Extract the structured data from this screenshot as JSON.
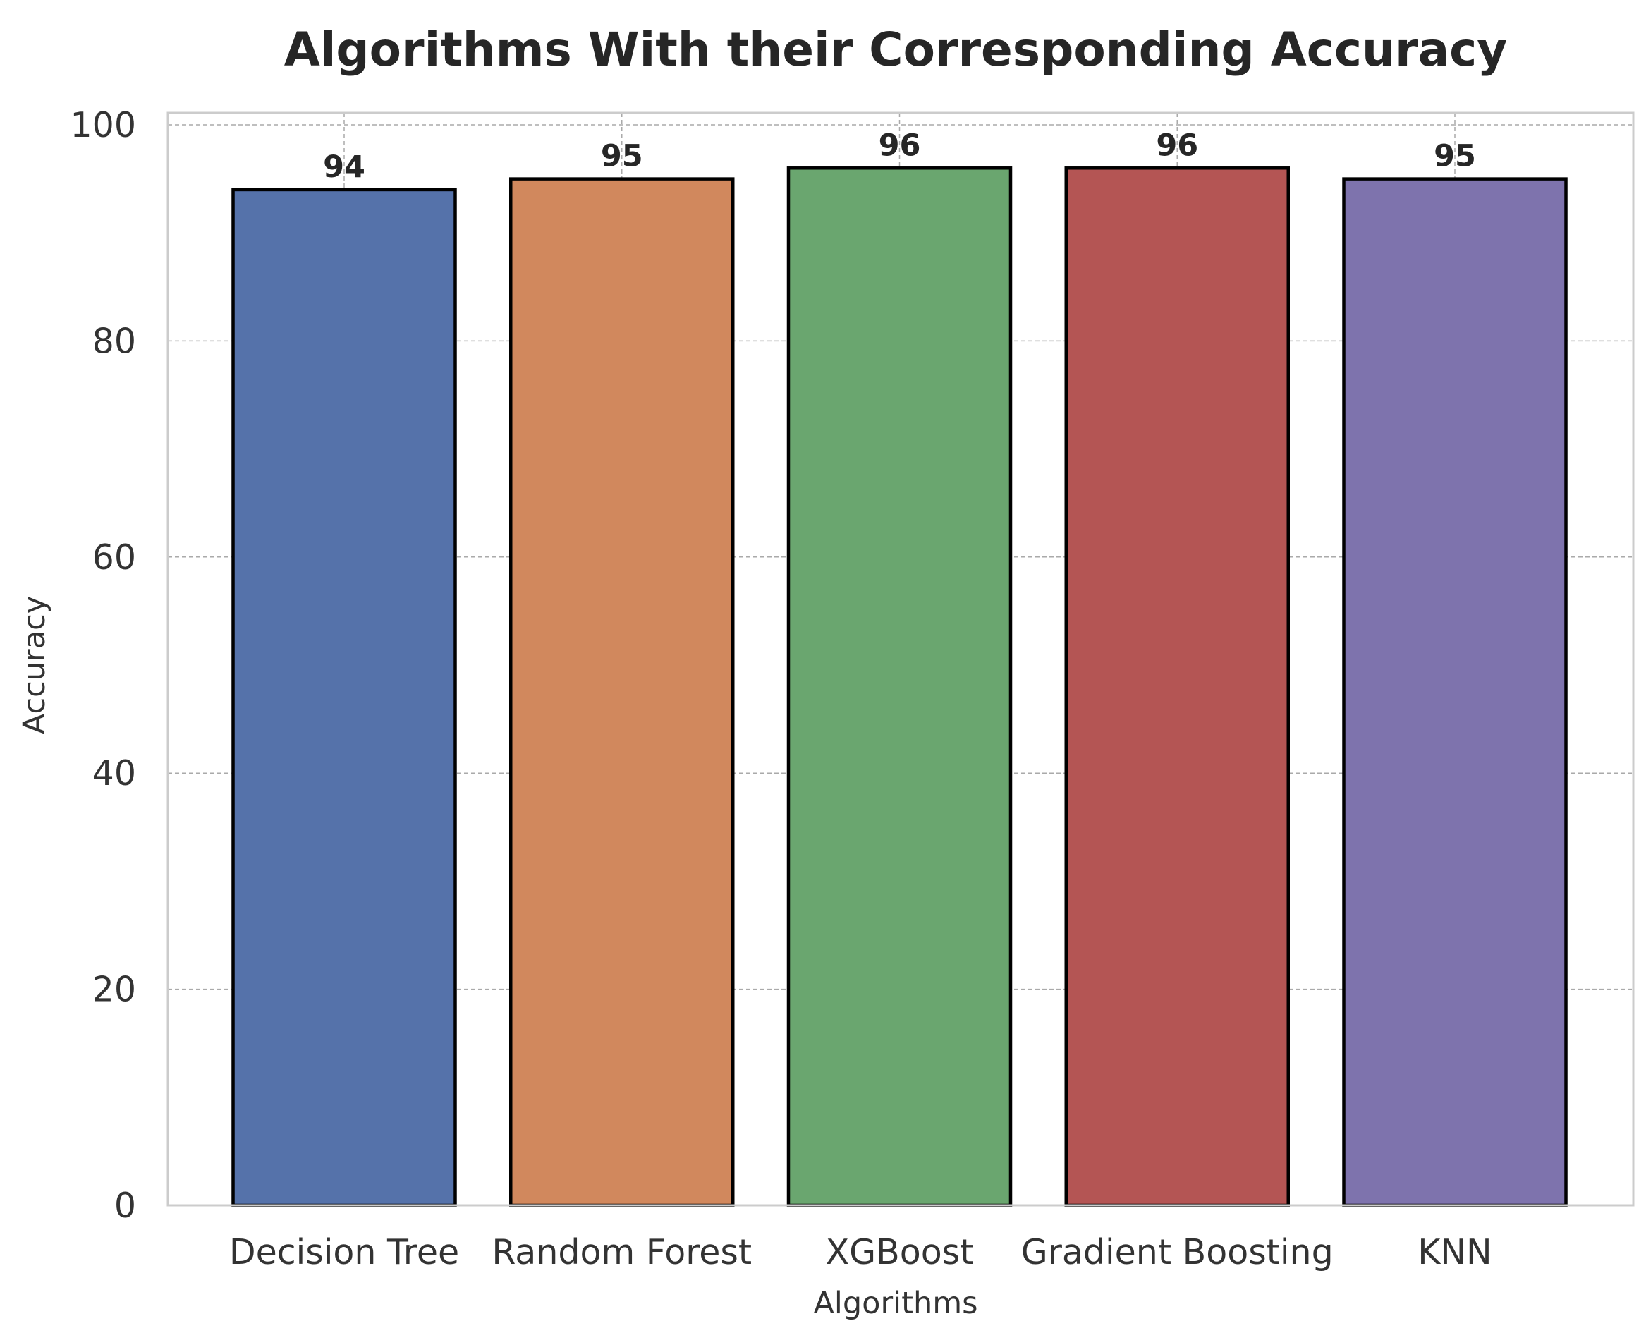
{
  "chart_data": {
    "type": "bar",
    "title": "Algorithms With their Corresponding Accuracy",
    "xlabel": "Algorithms",
    "ylabel": "Accuracy",
    "categories": [
      "Decision Tree",
      "Random Forest",
      "XGBoost",
      "Gradient Boosting",
      "KNN"
    ],
    "values": [
      94,
      95,
      96,
      96,
      95
    ],
    "data_labels": [
      "94",
      "95",
      "96",
      "96",
      "95"
    ],
    "colors": [
      "#5572aa",
      "#d1885d",
      "#6aa66f",
      "#b45554",
      "#7e73ad"
    ],
    "ylim": [
      0,
      100
    ],
    "yticks": [
      "0",
      "20",
      "40",
      "60",
      "80",
      "100"
    ],
    "ytick_values": [
      0,
      20,
      40,
      60,
      80,
      100
    ],
    "grid": true,
    "legend": "none"
  }
}
